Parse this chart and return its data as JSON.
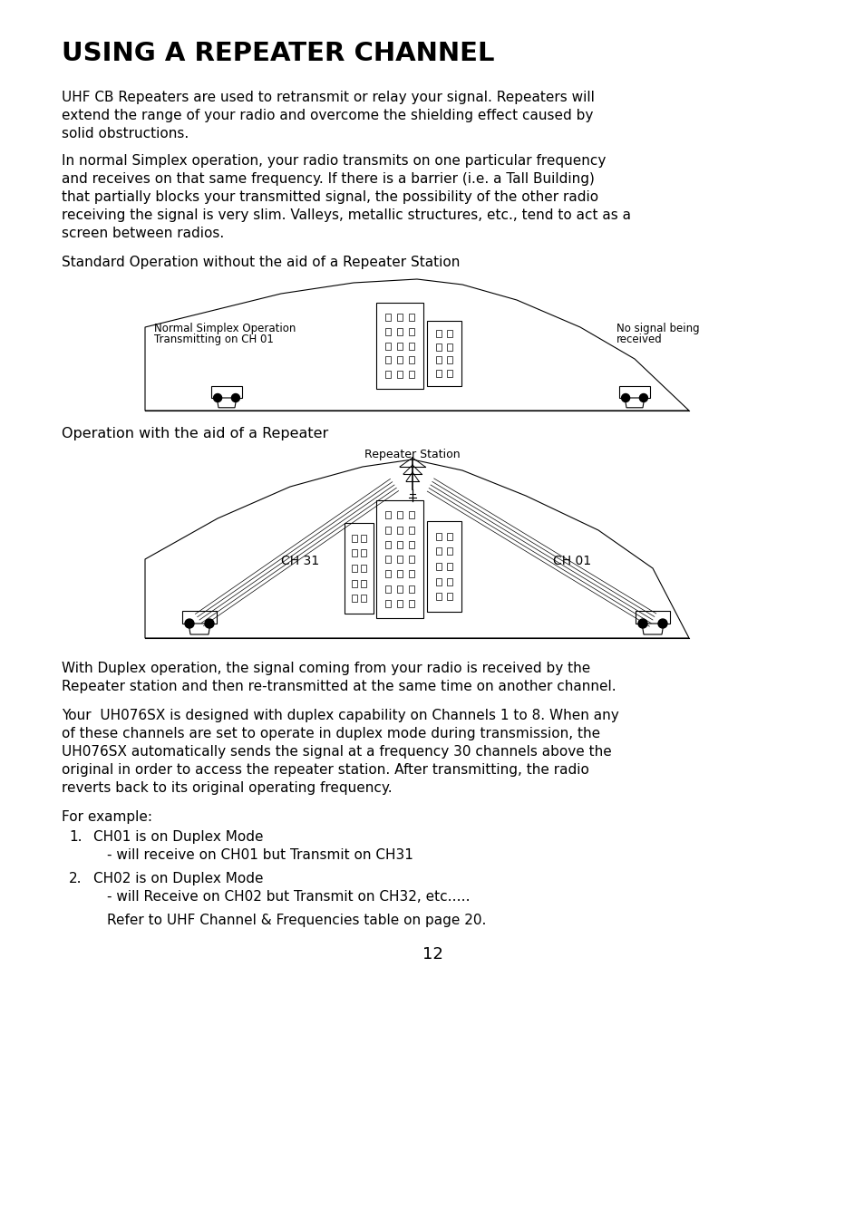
{
  "title": "USING A REPEATER CHANNEL",
  "bg_color": "#ffffff",
  "text_color": "#000000",
  "page_number": "12",
  "para1": "UHF CB Repeaters are used to retransmit or relay your signal. Repeaters will\nextend the range of your radio and overcome the shielding effect caused by\nsolid obstructions.",
  "para2": "In normal Simplex operation, your radio transmits on one particular frequency\nand receives on that same frequency. If there is a barrier (i.e. a Tall Building)\nthat partially blocks your transmitted signal, the possibility of the other radio\nreceiving the signal is very slim. Valleys, metallic structures, etc., tend to act as a\nscreen between radios.",
  "label_std": "Standard Operation without the aid of a Repeater Station",
  "label_op": "Operation with the aid of a Repeater",
  "para3": "With Duplex operation, the signal coming from your radio is received by the\nRepeater station and then re-transmitted at the same time on another channel.",
  "para4a": "Your  UH076SX is designed with duplex capability on Channels 1 to 8. When any",
  "para4b": "of these channels are set to operate in duplex mode during transmission, the",
  "para4c": "UH076SX automatically sends the signal at a frequency 30 channels above the",
  "para4d": "original in order to access the repeater station. After transmitting, the radio",
  "para4e": "reverts back to its original operating frequency.",
  "for_example": "For example:",
  "item1_num": "1.",
  "item1_text": "CH01 is on Duplex Mode",
  "item1_sub": "- will receive on CH01 but Transmit on CH31",
  "item2_num": "2.",
  "item2_text": "CH02 is on Duplex Mode",
  "item2_sub": "- will Receive on CH02 but Transmit on CH32, etc.….",
  "refer": "Refer to UHF Channel & Frequencies table on page 20.",
  "diag1_label_left1": "Normal Simplex Operation",
  "diag1_label_left2": "Transmitting on CH 01",
  "diag1_label_right1": "No signal being",
  "diag1_label_right2": "received",
  "diag2_label_top": "Repeater Station",
  "diag2_label_left": "CH 31",
  "diag2_label_right": "CH 01"
}
